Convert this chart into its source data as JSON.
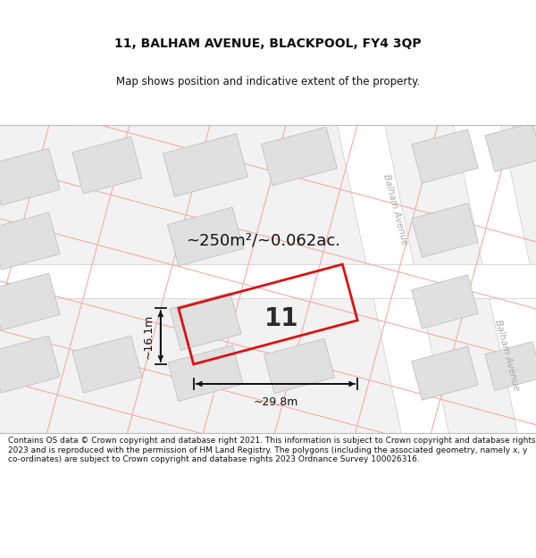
{
  "title": "11, BALHAM AVENUE, BLACKPOOL, FY4 3QP",
  "subtitle": "Map shows position and indicative extent of the property.",
  "footer": "Contains OS data © Crown copyright and database right 2021. This information is subject to Crown copyright and database rights 2023 and is reproduced with the permission of HM Land Registry. The polygons (including the associated geometry, namely x, y co-ordinates) are subject to Crown copyright and database rights 2023 Ordnance Survey 100026316.",
  "area_label": "~250m²/~0.062ac.",
  "width_label": "~29.8m",
  "height_label": "~16.1m",
  "plot_number": "11",
  "bg_color": "#f2f2f2",
  "bld_color": "#e0e0e0",
  "bld_edge": "#c0c0c0",
  "plot_red": "#dd1111",
  "road_white": "#ffffff",
  "road_edge": "#cccccc",
  "pink_line": "#f5aaaa",
  "dim_color": "#111111",
  "street_label_color": "#aaaaaa",
  "title_fontsize": 10,
  "subtitle_fontsize": 8.5,
  "footer_fontsize": 6.5,
  "area_fontsize": 13,
  "dim_fontsize": 9,
  "plot_num_fontsize": 20,
  "street_fontsize": 7.5
}
